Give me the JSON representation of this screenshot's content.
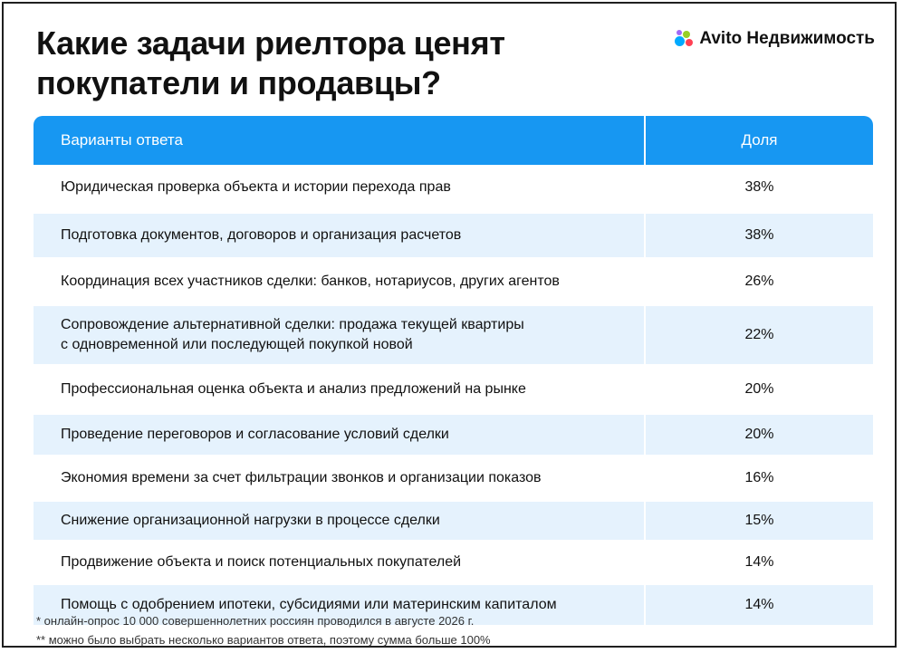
{
  "title": "Какие задачи риелтора ценят покупатели и продавцы?",
  "logo": {
    "text": "Avito Недвижимость",
    "colors": [
      "#00aaff",
      "#97cf26",
      "#ff4053",
      "#a169f7"
    ]
  },
  "chart_data": {
    "type": "table",
    "columns": [
      "Варианты ответа",
      "Доля"
    ],
    "rows": [
      {
        "label": "Юридическая проверка объекта и истории перехода прав",
        "value": "38%"
      },
      {
        "label": "Подготовка документов, договоров и организация расчетов",
        "value": "38%"
      },
      {
        "label": "Координация всех участников сделки: банков, нотариусов, других агентов",
        "value": "26%"
      },
      {
        "label": "Сопровождение альтернативной сделки: продажа текущей квартиры\nс одновременной или последующей покупкой новой",
        "value": "22%"
      },
      {
        "label": "Профессиональная оценка объекта и анализ предложений на рынке",
        "value": "20%"
      },
      {
        "label": "Проведение переговоров и согласование условий сделки",
        "value": "20%"
      },
      {
        "label": "Экономия времени за счет фильтрации звонков и организации показов",
        "value": "16%"
      },
      {
        "label": "Снижение организационной нагрузки в процессе сделки",
        "value": "15%"
      },
      {
        "label": "Продвижение объекта и поиск потенциальных покупателей",
        "value": "14%"
      },
      {
        "label": "Помощь с одобрением ипотеки, субсидиями или материнским капиталом",
        "value": "14%"
      }
    ]
  },
  "notes": [
    "* онлайн-опрос 10 000 совершеннолетних россиян проводился в августе 2026 г.",
    "** можно было выбрать несколько вариантов ответа, поэтому сумма больше 100%"
  ],
  "colors": {
    "header": "#1797f2",
    "stripe": "#e5f2fd"
  }
}
